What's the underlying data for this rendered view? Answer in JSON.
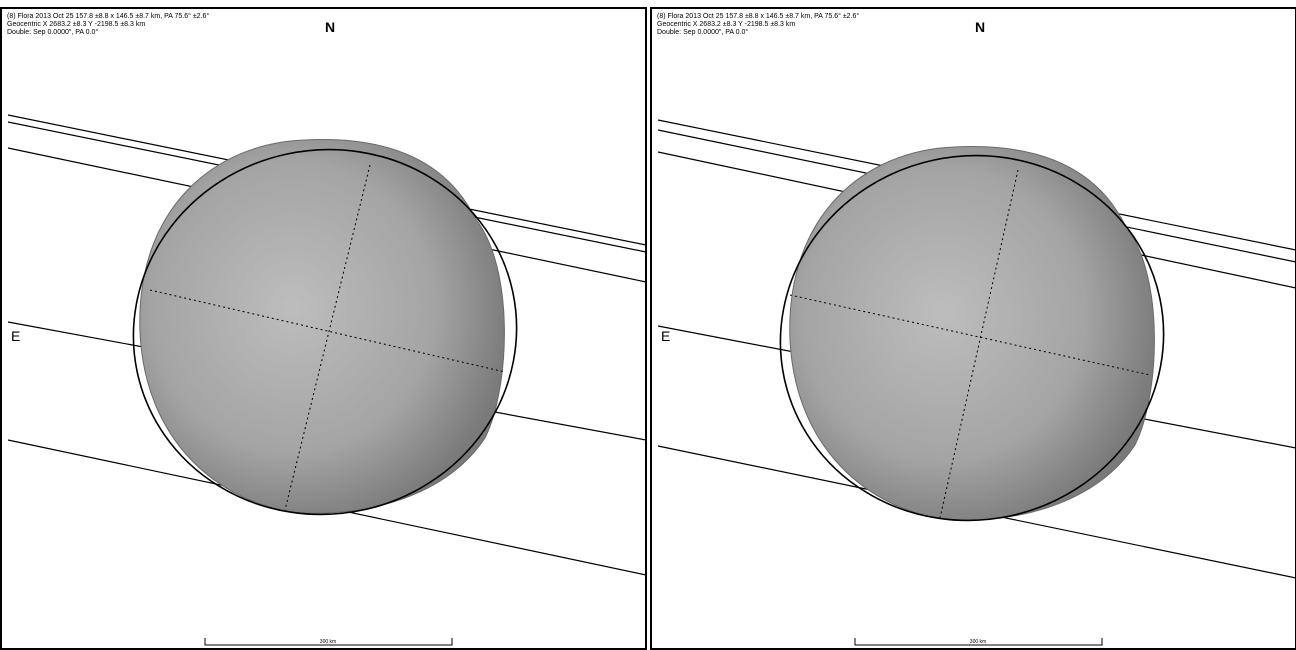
{
  "panels": [
    {
      "lines": [
        "(8) Flora 2013 Oct 25 157.8 ±8.8 x 146.5 ±8.7 km, PA 75.6° ±2.6°",
        "Geocentric X 2683.2 ±8.3 Y -2198.5 ±8.3 km",
        "Double: Sep 0.0000\", PA 0.0°"
      ],
      "north": "N",
      "east": "E",
      "scale": "300 km"
    },
    {
      "lines": [
        "(8) Flora 2013 Oct 25 157.8 ±8.8 x 146.5 ±8.7 km, PA 75.6° ±2.6°",
        "Geocentric X 2683.2 ±8.3 Y -2198.5 ±8.3 km",
        "Double: Sep 0.0000\", PA 0.0°"
      ],
      "north": "N",
      "east": "E",
      "scale": "300 km"
    }
  ]
}
